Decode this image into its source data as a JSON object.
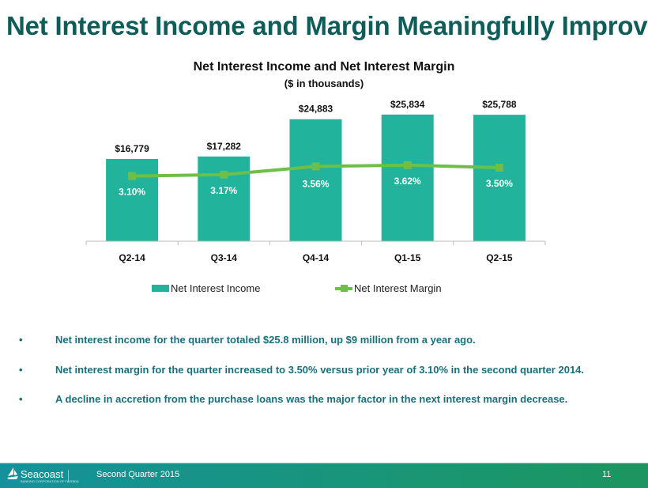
{
  "slide": {
    "title": "Net Interest Income and Margin Meaningfully Improved",
    "bullets": [
      "Net interest income for the quarter totaled $25.8 million, up $9 million from a year ago.",
      "Net interest margin for the quarter increased to 3.50% versus prior year of 3.10% in the second quarter 2014.",
      "A decline in accretion from the purchase loans was the major factor in the next interest margin decrease."
    ],
    "bullet_char": "•"
  },
  "footer": {
    "logo_text": "Seacoast",
    "logo_subtext": "BANKING CORPORATION OF FLORIDA",
    "quarter": "Second Quarter 2015",
    "page_number": "11"
  },
  "chart_data": {
    "type": "bar",
    "title": "Net Interest Income and Net Interest Margin",
    "subtitle": "($ in thousands)",
    "categories": [
      "Q2-14",
      "Q3-14",
      "Q4-14",
      "Q1-15",
      "Q2-15"
    ],
    "series": [
      {
        "name": "Net Interest Income",
        "type": "bar",
        "axis": "primary",
        "color": "#21b39b",
        "values": [
          16779,
          17282,
          24883,
          25834,
          25788
        ],
        "labels": [
          "$16,779",
          "$17,282",
          "$24,883",
          "$25,834",
          "$25,788"
        ]
      },
      {
        "name": "Net Interest Margin",
        "type": "line",
        "axis": "secondary",
        "color": "#6cc04a",
        "values": [
          3.1,
          3.17,
          3.56,
          3.62,
          3.5
        ],
        "labels": [
          "3.10%",
          "3.17%",
          "3.56%",
          "3.62%",
          "3.50%"
        ]
      }
    ],
    "ylim": [
      0,
      30000
    ],
    "y2lim": [
      0,
      7
    ],
    "grid": false,
    "legend": "bottom"
  }
}
